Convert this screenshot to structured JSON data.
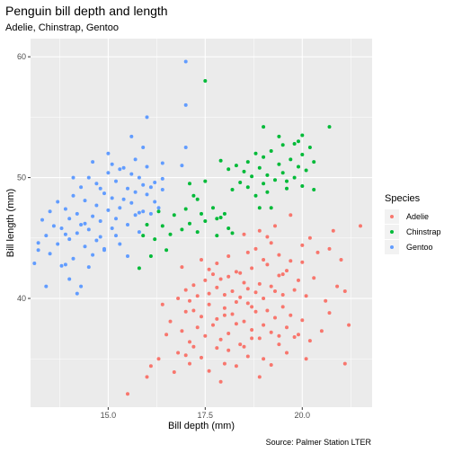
{
  "chart_data": {
    "type": "scatter",
    "title": "Penguin bill depth and length",
    "subtitle": "Adelie, Chinstrap, Gentoo",
    "xlabel": "Bill depth (mm)",
    "ylabel": "Bill length (mm)",
    "caption": "Source: Palmer Station LTER",
    "xlim": [
      13.0,
      21.8
    ],
    "ylim": [
      31.0,
      61.5
    ],
    "xticks": [
      15,
      17.5,
      20
    ],
    "xtick_labels": [
      "15.0",
      "17.5",
      "20.0"
    ],
    "yticks": [
      40,
      50,
      60
    ],
    "ytick_labels": [
      "40",
      "50",
      "60"
    ],
    "grid": true,
    "legend": {
      "title": "Species",
      "position": "right"
    },
    "series": [
      {
        "name": "Adelie",
        "color": "#F8766D",
        "points": [
          [
            15.5,
            32.1
          ],
          [
            16.0,
            33.5
          ],
          [
            16.1,
            34.4
          ],
          [
            16.3,
            35.0
          ],
          [
            16.7,
            33.9
          ],
          [
            16.8,
            35.5
          ],
          [
            17.0,
            35.3
          ],
          [
            17.1,
            34.6
          ],
          [
            17.2,
            36.0
          ],
          [
            17.4,
            35.1
          ],
          [
            17.6,
            34.0
          ],
          [
            17.8,
            35.9
          ],
          [
            17.9,
            33.1
          ],
          [
            18.0,
            34.6
          ],
          [
            18.1,
            35.7
          ],
          [
            18.3,
            34.4
          ],
          [
            18.5,
            36.0
          ],
          [
            18.6,
            35.2
          ],
          [
            18.7,
            36.7
          ],
          [
            18.9,
            33.5
          ],
          [
            19.0,
            35.0
          ],
          [
            19.2,
            34.5
          ],
          [
            19.4,
            36.2
          ],
          [
            19.6,
            35.5
          ],
          [
            19.8,
            36.8
          ],
          [
            20.1,
            35.0
          ],
          [
            21.1,
            34.6
          ],
          [
            16.5,
            37.0
          ],
          [
            16.6,
            38.1
          ],
          [
            16.9,
            37.3
          ],
          [
            17.0,
            38.9
          ],
          [
            17.1,
            36.4
          ],
          [
            17.2,
            39.0
          ],
          [
            17.3,
            37.6
          ],
          [
            17.4,
            38.5
          ],
          [
            17.5,
            36.9
          ],
          [
            17.6,
            39.5
          ],
          [
            17.7,
            37.8
          ],
          [
            17.8,
            38.3
          ],
          [
            17.9,
            36.6
          ],
          [
            18.0,
            39.2
          ],
          [
            18.1,
            37.1
          ],
          [
            18.2,
            38.7
          ],
          [
            18.3,
            37.9
          ],
          [
            18.4,
            36.2
          ],
          [
            18.5,
            38.1
          ],
          [
            18.6,
            39.6
          ],
          [
            18.7,
            37.4
          ],
          [
            18.8,
            38.9
          ],
          [
            18.9,
            36.7
          ],
          [
            19.0,
            37.8
          ],
          [
            19.1,
            39.0
          ],
          [
            19.2,
            37.2
          ],
          [
            19.3,
            38.4
          ],
          [
            19.4,
            36.9
          ],
          [
            19.5,
            39.3
          ],
          [
            19.6,
            37.6
          ],
          [
            19.7,
            38.6
          ],
          [
            19.9,
            37.0
          ],
          [
            20.0,
            38.2
          ],
          [
            20.2,
            36.5
          ],
          [
            20.5,
            37.3
          ],
          [
            20.7,
            38.8
          ],
          [
            21.2,
            37.8
          ],
          [
            16.4,
            39.5
          ],
          [
            16.8,
            40.0
          ],
          [
            17.0,
            40.7
          ],
          [
            17.2,
            41.1
          ],
          [
            17.3,
            40.2
          ],
          [
            17.5,
            41.5
          ],
          [
            17.6,
            40.4
          ],
          [
            17.7,
            42.0
          ],
          [
            17.8,
            40.9
          ],
          [
            17.9,
            41.6
          ],
          [
            18.0,
            40.3
          ],
          [
            18.1,
            41.8
          ],
          [
            18.2,
            40.6
          ],
          [
            18.3,
            42.2
          ],
          [
            18.4,
            40.1
          ],
          [
            18.5,
            41.3
          ],
          [
            18.6,
            40.8
          ],
          [
            18.7,
            42.5
          ],
          [
            18.8,
            40.5
          ],
          [
            18.9,
            41.2
          ],
          [
            19.0,
            40.0
          ],
          [
            19.1,
            42.8
          ],
          [
            19.2,
            41.0
          ],
          [
            19.3,
            40.6
          ],
          [
            19.4,
            41.9
          ],
          [
            19.5,
            40.3
          ],
          [
            19.6,
            42.3
          ],
          [
            19.8,
            40.7
          ],
          [
            19.9,
            41.5
          ],
          [
            20.1,
            40.2
          ],
          [
            20.3,
            41.7
          ],
          [
            20.6,
            39.8
          ],
          [
            20.9,
            41.0
          ],
          [
            21.1,
            40.6
          ],
          [
            16.9,
            42.6
          ],
          [
            17.4,
            43.2
          ],
          [
            17.8,
            42.9
          ],
          [
            18.1,
            43.5
          ],
          [
            18.4,
            42.1
          ],
          [
            18.6,
            43.8
          ],
          [
            18.8,
            44.1
          ],
          [
            19.0,
            43.2
          ],
          [
            19.2,
            44.6
          ],
          [
            19.4,
            43.6
          ],
          [
            19.7,
            43.1
          ],
          [
            20.0,
            44.4
          ],
          [
            20.2,
            45.0
          ],
          [
            20.4,
            43.8
          ],
          [
            18.5,
            45.3
          ],
          [
            18.9,
            45.6
          ],
          [
            19.3,
            46.0
          ],
          [
            19.1,
            45.1
          ],
          [
            20.7,
            44.1
          ],
          [
            20.0,
            43.0
          ],
          [
            21.0,
            43.2
          ],
          [
            20.8,
            45.6
          ],
          [
            21.5,
            46.0
          ],
          [
            19.7,
            46.9
          ],
          [
            18.3,
            39.7
          ],
          [
            17.6,
            42.4
          ],
          [
            18.7,
            39.3
          ],
          [
            19.5,
            42.0
          ],
          [
            18.0,
            38.6
          ],
          [
            17.1,
            39.8
          ]
        ]
      },
      {
        "name": "Chinstrap",
        "color": "#00BA38",
        "points": [
          [
            16.4,
            46.0
          ],
          [
            16.6,
            45.3
          ],
          [
            16.7,
            46.9
          ],
          [
            16.9,
            45.7
          ],
          [
            17.0,
            47.4
          ],
          [
            17.1,
            46.2
          ],
          [
            17.3,
            45.5
          ],
          [
            17.3,
            48.2
          ],
          [
            17.4,
            47.0
          ],
          [
            17.5,
            46.4
          ],
          [
            17.7,
            47.5
          ],
          [
            17.8,
            46.6
          ],
          [
            17.9,
            46.7
          ],
          [
            17.5,
            49.7
          ],
          [
            17.9,
            51.4
          ],
          [
            18.1,
            50.7
          ],
          [
            18.2,
            49.0
          ],
          [
            18.3,
            51.0
          ],
          [
            18.4,
            49.6
          ],
          [
            18.5,
            50.5
          ],
          [
            18.6,
            49.2
          ],
          [
            18.6,
            51.3
          ],
          [
            18.7,
            50.1
          ],
          [
            18.8,
            52.0
          ],
          [
            18.8,
            48.5
          ],
          [
            18.9,
            50.8
          ],
          [
            19.0,
            49.5
          ],
          [
            19.0,
            51.7
          ],
          [
            19.1,
            50.2
          ],
          [
            19.2,
            52.2
          ],
          [
            19.2,
            47.5
          ],
          [
            19.3,
            49.8
          ],
          [
            19.4,
            51.1
          ],
          [
            19.5,
            50.4
          ],
          [
            19.5,
            52.7
          ],
          [
            19.6,
            49.1
          ],
          [
            19.7,
            51.5
          ],
          [
            19.8,
            50.0
          ],
          [
            19.8,
            52.8
          ],
          [
            19.9,
            50.9
          ],
          [
            20.0,
            49.3
          ],
          [
            20.0,
            51.9
          ],
          [
            20.1,
            50.6
          ],
          [
            20.2,
            52.5
          ],
          [
            20.3,
            51.3
          ],
          [
            20.0,
            53.5
          ],
          [
            19.4,
            53.4
          ],
          [
            19.0,
            54.2
          ],
          [
            20.7,
            54.2
          ],
          [
            17.5,
            58.0
          ],
          [
            15.8,
            42.5
          ],
          [
            15.9,
            45.2
          ],
          [
            16.1,
            43.5
          ],
          [
            16.2,
            44.9
          ],
          [
            16.0,
            46.1
          ],
          [
            16.5,
            44.0
          ],
          [
            16.3,
            47.2
          ],
          [
            17.1,
            49.5
          ],
          [
            17.8,
            45.2
          ],
          [
            18.1,
            45.8
          ],
          [
            18.0,
            47.0
          ],
          [
            19.1,
            48.8
          ],
          [
            19.6,
            49.7
          ],
          [
            18.2,
            45.4
          ],
          [
            17.2,
            48.5
          ],
          [
            18.9,
            47.5
          ],
          [
            20.3,
            49.0
          ],
          [
            19.9,
            53.0
          ]
        ]
      },
      {
        "name": "Gentoo",
        "color": "#619CFF",
        "points": [
          [
            13.1,
            42.9
          ],
          [
            13.2,
            44.0
          ],
          [
            13.3,
            46.5
          ],
          [
            13.4,
            45.2
          ],
          [
            13.5,
            43.7
          ],
          [
            13.5,
            47.2
          ],
          [
            13.6,
            46.0
          ],
          [
            13.7,
            44.5
          ],
          [
            13.7,
            48.0
          ],
          [
            13.8,
            45.8
          ],
          [
            13.9,
            42.8
          ],
          [
            13.9,
            47.4
          ],
          [
            14.0,
            44.9
          ],
          [
            14.0,
            46.6
          ],
          [
            14.1,
            48.5
          ],
          [
            14.1,
            43.3
          ],
          [
            14.2,
            45.4
          ],
          [
            14.2,
            47.0
          ],
          [
            14.3,
            49.2
          ],
          [
            14.3,
            46.1
          ],
          [
            14.4,
            44.3
          ],
          [
            14.4,
            48.1
          ],
          [
            14.5,
            45.7
          ],
          [
            14.5,
            50.0
          ],
          [
            14.6,
            46.8
          ],
          [
            14.6,
            43.6
          ],
          [
            14.7,
            47.7
          ],
          [
            14.7,
            49.5
          ],
          [
            14.8,
            45.1
          ],
          [
            14.8,
            46.4
          ],
          [
            14.9,
            48.7
          ],
          [
            14.9,
            44.0
          ],
          [
            15.0,
            47.3
          ],
          [
            15.0,
            50.4
          ],
          [
            15.1,
            45.8
          ],
          [
            15.1,
            48.3
          ],
          [
            15.2,
            46.6
          ],
          [
            15.2,
            49.7
          ],
          [
            15.3,
            47.5
          ],
          [
            15.3,
            44.5
          ],
          [
            15.4,
            50.8
          ],
          [
            15.4,
            48.2
          ],
          [
            15.5,
            46.1
          ],
          [
            15.5,
            49.1
          ],
          [
            15.6,
            47.9
          ],
          [
            15.6,
            50.3
          ],
          [
            15.7,
            46.9
          ],
          [
            15.7,
            48.8
          ],
          [
            15.8,
            50.0
          ],
          [
            15.8,
            45.5
          ],
          [
            15.9,
            49.4
          ],
          [
            15.9,
            47.2
          ],
          [
            16.0,
            48.6
          ],
          [
            16.0,
            50.9
          ],
          [
            16.1,
            49.2
          ],
          [
            16.2,
            48.0
          ],
          [
            16.3,
            47.5
          ],
          [
            16.4,
            49.0
          ],
          [
            15.7,
            51.5
          ],
          [
            15.9,
            52.5
          ],
          [
            15.6,
            53.4
          ],
          [
            16.0,
            55.0
          ],
          [
            16.4,
            49.9
          ],
          [
            16.4,
            51.2
          ],
          [
            14.3,
            41.0
          ],
          [
            14.5,
            42.6
          ],
          [
            14.0,
            41.6
          ],
          [
            14.9,
            44.1
          ],
          [
            15.5,
            43.5
          ],
          [
            16.2,
            49.6
          ],
          [
            17.0,
            59.6
          ],
          [
            17.0,
            56.0
          ],
          [
            17.0,
            52.5
          ],
          [
            16.9,
            51.0
          ],
          [
            15.2,
            45.2
          ],
          [
            14.1,
            50.0
          ],
          [
            14.6,
            51.3
          ],
          [
            15.0,
            52.0
          ],
          [
            14.8,
            49.1
          ],
          [
            13.4,
            41.0
          ],
          [
            13.2,
            44.6
          ],
          [
            15.3,
            50.7
          ],
          [
            15.8,
            47.1
          ],
          [
            14.4,
            46.2
          ],
          [
            14.7,
            44.8
          ],
          [
            13.9,
            45.3
          ],
          [
            16.1,
            47.0
          ],
          [
            15.1,
            51.1
          ],
          [
            14.2,
            40.4
          ],
          [
            13.8,
            42.7
          ]
        ]
      }
    ]
  }
}
